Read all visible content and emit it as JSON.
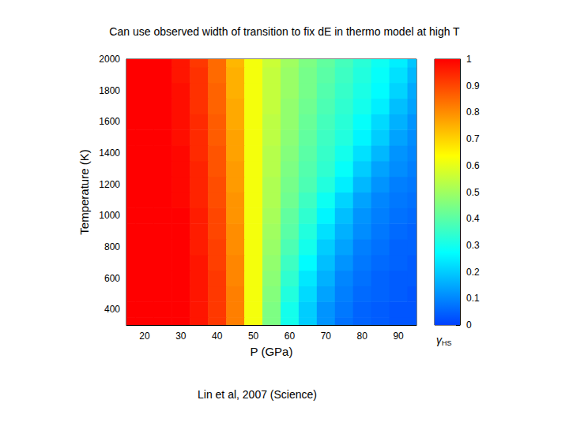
{
  "chart_data": {
    "type": "heatmap",
    "title": "Can use observed width of transition to fix dE in thermo model at high T",
    "footnote": "Lin et al, 2007 (Science)",
    "x_label": "P (GPa)",
    "y_label": "Temperature (K)",
    "x": [
      15,
      20,
      25,
      30,
      35,
      40,
      45,
      50,
      55,
      60,
      65,
      70,
      75,
      80,
      85,
      90,
      95
    ],
    "y": [
      300,
      400,
      500,
      600,
      700,
      800,
      900,
      1000,
      1100,
      1200,
      1300,
      1400,
      1500,
      1600,
      1700,
      1800,
      1900,
      2000
    ],
    "cells": [
      [
        1,
        1,
        1,
        1,
        0.97,
        0.92,
        0.82,
        0.62,
        0.45,
        0.3,
        0.2,
        0.12,
        0.07,
        0.05,
        0.04,
        0.03,
        0.03
      ],
      [
        1,
        1,
        1,
        1,
        0.97,
        0.92,
        0.82,
        0.62,
        0.45,
        0.3,
        0.2,
        0.12,
        0.08,
        0.05,
        0.04,
        0.03,
        0.03
      ],
      [
        1,
        1,
        1,
        1,
        0.97,
        0.92,
        0.82,
        0.62,
        0.46,
        0.32,
        0.22,
        0.14,
        0.09,
        0.06,
        0.05,
        0.04,
        0.03
      ],
      [
        1,
        1,
        1,
        1,
        0.97,
        0.92,
        0.81,
        0.62,
        0.47,
        0.34,
        0.24,
        0.16,
        0.1,
        0.07,
        0.05,
        0.04,
        0.04
      ],
      [
        1,
        1,
        1,
        1,
        0.97,
        0.91,
        0.81,
        0.62,
        0.48,
        0.36,
        0.27,
        0.18,
        0.12,
        0.08,
        0.06,
        0.05,
        0.04
      ],
      [
        1,
        1,
        1,
        1,
        0.96,
        0.91,
        0.8,
        0.62,
        0.49,
        0.38,
        0.3,
        0.2,
        0.14,
        0.09,
        0.07,
        0.05,
        0.05
      ],
      [
        1,
        1,
        1,
        1,
        0.96,
        0.9,
        0.8,
        0.62,
        0.5,
        0.4,
        0.32,
        0.23,
        0.16,
        0.11,
        0.08,
        0.06,
        0.05
      ],
      [
        1,
        1,
        1,
        1,
        0.96,
        0.9,
        0.79,
        0.62,
        0.51,
        0.41,
        0.34,
        0.26,
        0.18,
        0.12,
        0.09,
        0.07,
        0.06
      ],
      [
        1,
        1,
        1,
        0.99,
        0.95,
        0.89,
        0.79,
        0.62,
        0.52,
        0.43,
        0.36,
        0.29,
        0.21,
        0.14,
        0.1,
        0.08,
        0.07
      ],
      [
        1,
        1,
        1,
        0.99,
        0.95,
        0.89,
        0.78,
        0.62,
        0.52,
        0.44,
        0.38,
        0.32,
        0.25,
        0.17,
        0.12,
        0.09,
        0.08
      ],
      [
        1,
        1,
        1,
        0.99,
        0.95,
        0.88,
        0.78,
        0.62,
        0.53,
        0.45,
        0.39,
        0.34,
        0.28,
        0.2,
        0.14,
        0.11,
        0.09
      ],
      [
        1,
        1,
        1,
        0.99,
        0.94,
        0.88,
        0.77,
        0.62,
        0.53,
        0.46,
        0.4,
        0.35,
        0.3,
        0.23,
        0.17,
        0.12,
        0.1
      ],
      [
        1,
        1,
        1,
        0.98,
        0.94,
        0.87,
        0.77,
        0.62,
        0.54,
        0.47,
        0.41,
        0.36,
        0.32,
        0.26,
        0.2,
        0.14,
        0.11
      ],
      [
        1,
        1,
        1,
        0.98,
        0.94,
        0.87,
        0.76,
        0.62,
        0.54,
        0.48,
        0.42,
        0.37,
        0.33,
        0.28,
        0.22,
        0.16,
        0.12
      ],
      [
        1,
        1,
        1,
        0.98,
        0.93,
        0.86,
        0.76,
        0.62,
        0.55,
        0.48,
        0.43,
        0.38,
        0.34,
        0.3,
        0.25,
        0.18,
        0.14
      ],
      [
        1,
        1,
        1,
        0.98,
        0.93,
        0.86,
        0.75,
        0.62,
        0.55,
        0.49,
        0.44,
        0.39,
        0.35,
        0.31,
        0.27,
        0.21,
        0.15
      ],
      [
        1,
        1,
        1,
        0.97,
        0.93,
        0.85,
        0.75,
        0.62,
        0.55,
        0.49,
        0.44,
        0.4,
        0.36,
        0.32,
        0.28,
        0.23,
        0.17
      ],
      [
        1,
        1,
        1,
        0.97,
        0.92,
        0.85,
        0.74,
        0.62,
        0.56,
        0.5,
        0.45,
        0.41,
        0.37,
        0.33,
        0.29,
        0.25,
        0.19
      ]
    ],
    "xlim": [
      15,
      95
    ],
    "xticks": [
      20,
      30,
      40,
      50,
      60,
      70,
      80,
      90
    ],
    "ylim": [
      300,
      2000
    ],
    "yticks": [
      400,
      600,
      800,
      1000,
      1200,
      1400,
      1600,
      1800,
      2000
    ],
    "grid": false,
    "colorbar": {
      "label": "γHS",
      "range": [
        0,
        1
      ],
      "ticks": [
        0,
        0.1,
        0.2,
        0.3,
        0.4,
        0.5,
        0.6,
        0.7,
        0.8,
        0.9,
        1
      ],
      "colors": [
        "#0040ff",
        "#0080ff",
        "#00c0ff",
        "#00ffff",
        "#40ffc0",
        "#80ff80",
        "#c0ff40",
        "#ffff00",
        "#ffc000",
        "#ff8000",
        "#ff4000",
        "#ff0000"
      ]
    }
  }
}
